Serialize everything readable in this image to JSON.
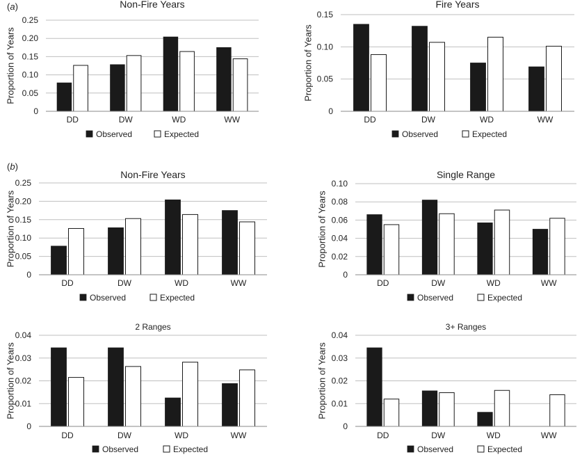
{
  "panel_labels": {
    "a": "a",
    "b": "b"
  },
  "legend": {
    "observed": "Observed",
    "expected": "Expected"
  },
  "colors": {
    "observed": "#1a1a1a",
    "expected": "#ffffff",
    "stroke": "#1a1a1a",
    "grid": "#bfbfbf"
  },
  "chart_data": [
    {
      "type": "bar",
      "title": "Non-Fire Years",
      "ylabel": "Proportion of Years",
      "categories": [
        "DD",
        "DW",
        "WD",
        "WW"
      ],
      "ylim": [
        0,
        0.25
      ],
      "yticks": [
        "0",
        "0.05",
        "0.10",
        "0.15",
        "0.20",
        "0.25"
      ],
      "series": [
        {
          "name": "Observed",
          "values": [
            0.078,
            0.128,
            0.204,
            0.175
          ]
        },
        {
          "name": "Expected",
          "values": [
            0.126,
            0.153,
            0.164,
            0.144
          ]
        }
      ]
    },
    {
      "type": "bar",
      "title": "Fire Years",
      "ylabel": "Proportion of  Years",
      "categories": [
        "DD",
        "DW",
        "WD",
        "WW"
      ],
      "ylim": [
        0,
        0.15
      ],
      "yticks": [
        "0",
        "0.05",
        "0.10",
        "0.15"
      ],
      "series": [
        {
          "name": "Observed",
          "values": [
            0.135,
            0.132,
            0.075,
            0.069
          ]
        },
        {
          "name": "Expected",
          "values": [
            0.088,
            0.107,
            0.115,
            0.101
          ]
        }
      ]
    },
    {
      "type": "bar",
      "title": "Non-Fire Years",
      "ylabel": "Proportion of Years",
      "categories": [
        "DD",
        "DW",
        "WD",
        "WW"
      ],
      "ylim": [
        0,
        0.25
      ],
      "yticks": [
        "0",
        "0.05",
        "0.10",
        "0.15",
        "0.20",
        "0.25"
      ],
      "series": [
        {
          "name": "Observed",
          "values": [
            0.078,
            0.128,
            0.204,
            0.175
          ]
        },
        {
          "name": "Expected",
          "values": [
            0.126,
            0.153,
            0.164,
            0.144
          ]
        }
      ]
    },
    {
      "type": "bar",
      "title": "Single Range",
      "ylabel": "Proportion of Years",
      "categories": [
        "DD",
        "DW",
        "WD",
        "WW"
      ],
      "ylim": [
        0,
        0.1
      ],
      "yticks": [
        "0",
        "0.02",
        "0.04",
        "0.06",
        "0.08",
        "0.10"
      ],
      "series": [
        {
          "name": "Observed",
          "values": [
            0.066,
            0.082,
            0.057,
            0.05
          ]
        },
        {
          "name": "Expected",
          "values": [
            0.055,
            0.067,
            0.071,
            0.062
          ]
        }
      ]
    },
    {
      "type": "bar",
      "title": "2 Ranges",
      "ylabel": "Proportion of Years",
      "categories": [
        "DD",
        "DW",
        "WD",
        "WW"
      ],
      "ylim": [
        0,
        0.04
      ],
      "yticks": [
        "0",
        "0.01",
        "0.02",
        "0.03",
        "0.04"
      ],
      "series": [
        {
          "name": "Observed",
          "values": [
            0.0345,
            0.0345,
            0.0125,
            0.0188
          ]
        },
        {
          "name": "Expected",
          "values": [
            0.0215,
            0.0263,
            0.0282,
            0.0248
          ]
        }
      ]
    },
    {
      "type": "bar",
      "title": "3+ Ranges",
      "ylabel": "Proportion of Years",
      "categories": [
        "DD",
        "DW",
        "WD",
        "WW"
      ],
      "ylim": [
        0,
        0.04
      ],
      "yticks": [
        "0",
        "0.01",
        "0.02",
        "0.03",
        "0.04"
      ],
      "series": [
        {
          "name": "Observed",
          "values": [
            0.0345,
            0.0156,
            0.0062,
            0
          ]
        },
        {
          "name": "Expected",
          "values": [
            0.012,
            0.0148,
            0.0158,
            0.0139
          ]
        }
      ]
    }
  ]
}
